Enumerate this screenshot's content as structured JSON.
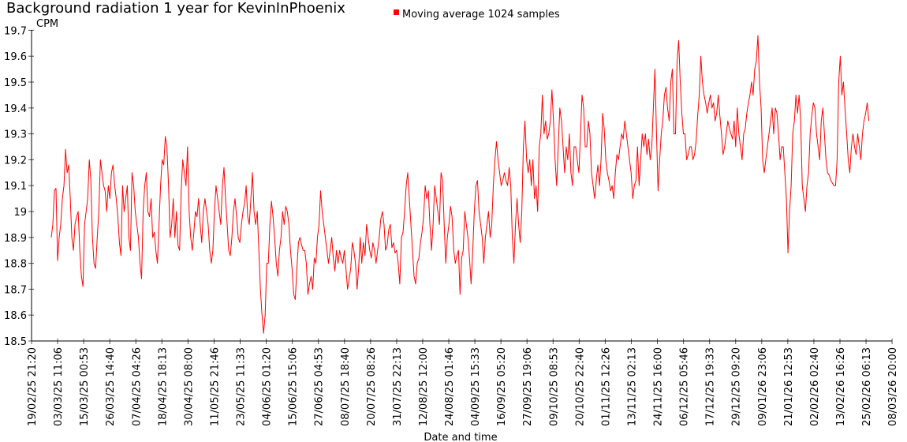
{
  "chart_data": {
    "type": "line",
    "title": "Background radiation 1 year for KevinInPhoenix",
    "xlabel": "Date and time",
    "ylabel": "CPM",
    "ylim": [
      18.5,
      19.7
    ],
    "yticks": [
      18.5,
      18.6,
      18.7,
      18.8,
      18.9,
      19,
      19.1,
      19.2,
      19.3,
      19.4,
      19.5,
      19.6,
      19.7
    ],
    "ytick_labels": [
      "18.5",
      "18.6",
      "18.7",
      "18.8",
      "18.9",
      "19",
      "19.1",
      "19.2",
      "19.3",
      "19.4",
      "19.5",
      "19.6",
      "19.7"
    ],
    "xlim_days": [
      0,
      381.9
    ],
    "xtick_step_days": 11.574,
    "xtick_labels": [
      "19/02/25 21:20",
      "03/03/25 11:06",
      "15/03/25 00:53",
      "26/03/25 14:40",
      "07/04/25 04:26",
      "18/04/25 18:13",
      "30/04/25 08:00",
      "11/05/25 21:46",
      "23/05/25 11:33",
      "04/06/25 01:20",
      "15/06/25 15:06",
      "27/06/25 04:53",
      "08/07/25 18:40",
      "20/07/25 08:26",
      "31/07/25 22:13",
      "12/08/25 12:00",
      "24/08/25 01:46",
      "04/09/25 15:33",
      "16/09/25 05:20",
      "27/09/25 19:06",
      "09/10/25 08:53",
      "20/10/25 22:40",
      "01/11/25 12:26",
      "13/11/25 02:13",
      "24/11/25 16:00",
      "06/12/25 05:46",
      "17/12/25 19:33",
      "29/12/25 09:20",
      "09/01/26 23:06",
      "21/01/26 12:53",
      "02/02/26 02:40",
      "13/02/26 16:26",
      "25/02/26 06:13",
      "08/03/26 20:00"
    ],
    "grid": false,
    "legend_position": "top-center",
    "series": [
      {
        "name": "Moving average 1024 samples",
        "color": "#ff0000",
        "x_start_day": 8.75,
        "x_end_day": 371.6,
        "values": [
          18.9,
          18.95,
          19.08,
          19.09,
          18.81,
          18.9,
          18.95,
          19.05,
          19.1,
          19.24,
          19.15,
          19.18,
          19.05,
          18.9,
          18.85,
          18.95,
          18.98,
          19.0,
          18.85,
          18.75,
          18.71,
          18.95,
          19.0,
          19.05,
          19.2,
          19.12,
          18.9,
          18.8,
          18.78,
          18.9,
          19.0,
          19.2,
          19.15,
          19.1,
          19.08,
          19.0,
          19.1,
          19.05,
          19.15,
          19.18,
          19.1,
          19.05,
          18.98,
          18.88,
          18.83,
          19.1,
          19.0,
          19.05,
          19.1,
          18.9,
          18.85,
          19.15,
          19.1,
          19.0,
          18.95,
          18.9,
          18.8,
          18.74,
          19.0,
          19.1,
          19.15,
          19.0,
          18.98,
          19.05,
          18.9,
          18.92,
          18.85,
          18.8,
          18.95,
          19.1,
          19.2,
          19.18,
          19.29,
          19.25,
          19.1,
          18.9,
          18.95,
          19.05,
          18.9,
          19.0,
          18.87,
          18.85,
          19.08,
          19.2,
          19.15,
          19.1,
          19.25,
          19.0,
          18.9,
          18.85,
          18.92,
          19.0,
          18.98,
          19.05,
          18.95,
          18.88,
          19.0,
          19.05,
          19.0,
          18.95,
          18.85,
          18.8,
          18.85,
          19.0,
          19.1,
          19.05,
          19.0,
          18.95,
          19.1,
          19.17,
          19.05,
          18.95,
          18.85,
          18.83,
          18.9,
          19.0,
          19.05,
          18.98,
          18.9,
          18.88,
          18.95,
          19.0,
          19.03,
          19.1,
          18.98,
          18.95,
          19.05,
          19.15,
          19.0,
          18.95,
          19.0,
          18.85,
          18.7,
          18.6,
          18.53,
          18.6,
          18.8,
          18.8,
          18.95,
          19.04,
          18.98,
          18.9,
          18.8,
          18.75,
          18.85,
          18.9,
          19.0,
          18.95,
          19.02,
          19.0,
          18.95,
          18.85,
          18.78,
          18.68,
          18.66,
          18.78,
          18.88,
          18.9,
          18.87,
          18.85,
          18.85,
          18.8,
          18.68,
          18.72,
          18.75,
          18.7,
          18.82,
          18.8,
          18.9,
          18.95,
          19.08,
          19.0,
          18.95,
          18.9,
          18.85,
          18.8,
          18.85,
          18.9,
          18.82,
          18.77,
          18.85,
          18.8,
          18.85,
          18.82,
          18.8,
          18.85,
          18.78,
          18.7,
          18.74,
          18.78,
          18.88,
          18.85,
          18.8,
          18.7,
          18.78,
          18.9,
          18.8,
          18.88,
          18.83,
          18.95,
          18.9,
          18.85,
          18.82,
          18.88,
          18.85,
          18.8,
          18.85,
          18.9,
          18.97,
          19.0,
          18.95,
          18.85,
          18.87,
          18.93,
          18.95,
          18.86,
          18.88,
          18.84,
          18.85,
          18.8,
          18.72,
          18.9,
          18.92,
          19.0,
          19.1,
          19.15,
          19.05,
          18.95,
          18.85,
          18.75,
          18.72,
          18.8,
          18.82,
          18.88,
          18.92,
          18.98,
          19.1,
          19.05,
          19.08,
          18.95,
          18.85,
          18.95,
          19.1,
          19.05,
          19.0,
          18.95,
          19.15,
          19.12,
          18.95,
          18.8,
          18.9,
          18.95,
          19.02,
          18.98,
          18.85,
          18.8,
          18.83,
          18.85,
          18.68,
          18.82,
          18.85,
          19.0,
          18.95,
          18.9,
          18.82,
          18.72,
          18.85,
          19.0,
          19.1,
          19.12,
          19.0,
          18.95,
          18.9,
          18.8,
          18.9,
          18.95,
          19.0,
          18.9,
          18.95,
          19.1,
          19.2,
          19.27,
          19.2,
          19.15,
          19.1,
          19.12,
          19.15,
          19.12,
          19.1,
          19.17,
          19.1,
          18.9,
          18.8,
          18.95,
          19.05,
          18.95,
          18.88,
          19.0,
          19.25,
          19.35,
          19.2,
          19.15,
          19.2,
          19.1,
          19.2,
          19.05,
          19.1,
          19.0,
          19.25,
          19.3,
          19.45,
          19.3,
          19.35,
          19.28,
          19.3,
          19.35,
          19.47,
          19.35,
          19.2,
          19.1,
          19.25,
          19.4,
          19.35,
          19.25,
          19.15,
          19.25,
          19.2,
          19.3,
          19.15,
          19.1,
          19.25,
          19.25,
          19.2,
          19.15,
          19.3,
          19.45,
          19.4,
          19.25,
          19.25,
          19.35,
          19.3,
          19.15,
          19.1,
          19.05,
          19.12,
          19.18,
          19.1,
          19.2,
          19.38,
          19.32,
          19.2,
          19.15,
          19.12,
          19.08,
          19.1,
          19.05,
          19.15,
          19.22,
          19.2,
          19.25,
          19.3,
          19.28,
          19.35,
          19.3,
          19.25,
          19.2,
          19.15,
          19.05,
          19.1,
          19.12,
          19.25,
          19.1,
          19.2,
          19.3,
          19.25,
          19.3,
          19.22,
          19.28,
          19.2,
          19.25,
          19.4,
          19.55,
          19.3,
          19.08,
          19.2,
          19.3,
          19.35,
          19.45,
          19.48,
          19.4,
          19.35,
          19.5,
          19.55,
          19.3,
          19.3,
          19.58,
          19.66,
          19.5,
          19.38,
          19.3,
          19.3,
          19.2,
          19.22,
          19.25,
          19.25,
          19.2,
          19.22,
          19.27,
          19.37,
          19.45,
          19.6,
          19.5,
          19.45,
          19.42,
          19.38,
          19.42,
          19.45,
          19.4,
          19.42,
          19.35,
          19.38,
          19.45,
          19.37,
          19.3,
          19.22,
          19.25,
          19.3,
          19.35,
          19.32,
          19.3,
          19.28,
          19.35,
          19.25,
          19.4,
          19.3,
          19.25,
          19.2,
          19.3,
          19.32,
          19.38,
          19.42,
          19.45,
          19.5,
          19.45,
          19.55,
          19.58,
          19.68,
          19.5,
          19.4,
          19.2,
          19.15,
          19.2,
          19.25,
          19.3,
          19.35,
          19.4,
          19.3,
          19.4,
          19.38,
          19.3,
          19.2,
          19.25,
          19.25,
          19.15,
          19.05,
          18.84,
          19.0,
          19.1,
          19.3,
          19.35,
          19.45,
          19.38,
          19.45,
          19.35,
          19.1,
          19.05,
          19.0,
          19.1,
          19.15,
          19.3,
          19.37,
          19.42,
          19.4,
          19.3,
          19.25,
          19.2,
          19.35,
          19.4,
          19.3,
          19.2,
          19.15,
          19.14,
          19.12,
          19.11,
          19.1,
          19.1,
          19.2,
          19.5,
          19.6,
          19.45,
          19.5,
          19.4,
          19.3,
          19.2,
          19.15,
          19.25,
          19.3,
          19.25,
          19.22,
          19.3,
          19.25,
          19.2,
          19.3,
          19.35,
          19.38,
          19.42,
          19.35
        ]
      }
    ]
  }
}
